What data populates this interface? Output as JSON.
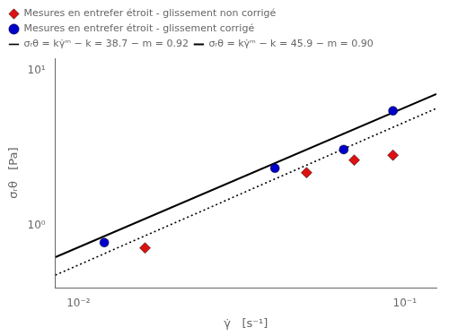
{
  "chart_data": {
    "type": "scatter",
    "xlabel": "γ̇   [s⁻¹]",
    "ylabel": "σᵣθ   [Pa]",
    "log": true,
    "grid": false,
    "legend": "upper left",
    "xlim": [
      0.0085,
      0.125
    ],
    "ylim": [
      0.4,
      12
    ],
    "xticks": [
      {
        "value": 0.01,
        "label": "10⁻²"
      },
      {
        "value": 0.1,
        "label": "10⁻¹"
      }
    ],
    "yticks": [
      {
        "value": 1,
        "label": "10⁰"
      },
      {
        "value": 10,
        "label": "10¹"
      }
    ],
    "series": [
      {
        "name": "Mesures en entrefer étroit - glissement non corrigé",
        "type": "scatter",
        "color": "#dd1111",
        "marker": "diamond",
        "x": [
          0.016,
          0.05,
          0.07,
          0.092
        ],
        "values": [
          0.72,
          2.2,
          2.65,
          2.85
        ]
      },
      {
        "name": "Mesures en entrefer étroit - glissement corrigé",
        "type": "scatter",
        "color": "#0000cc",
        "marker": "circle",
        "x": [
          0.012,
          0.04,
          0.065,
          0.092
        ],
        "values": [
          0.78,
          2.35,
          3.1,
          5.5
        ]
      },
      {
        "name": "σᵣθ = kγ̇ᵐ − k = 38.7 − m = 0.92",
        "type": "line",
        "color": "black",
        "line_style": "dotted",
        "x": [
          0.0085,
          0.125
        ],
        "values": [
          0.4817,
          5.713
        ]
      },
      {
        "name": "σᵣθ = kγ̇ᵐ − k = 45.9 − m = 0.90",
        "type": "line",
        "color": "black",
        "line_style": "solid",
        "x": [
          0.0085,
          0.125
        ],
        "values": [
          0.6285,
          7.064
        ]
      }
    ]
  }
}
